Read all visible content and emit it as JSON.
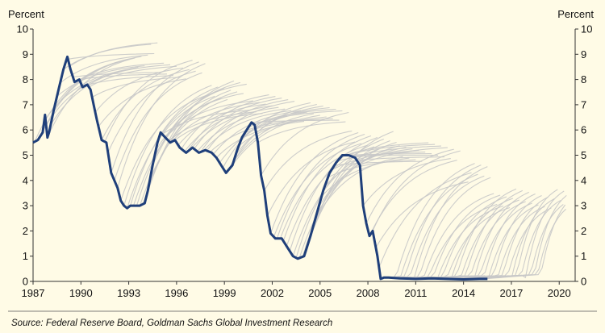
{
  "chart_data": {
    "type": "line",
    "left_axis_title": "Percent",
    "right_axis_title": "Percent",
    "ylim": [
      0,
      10
    ],
    "y_ticks": [
      "0",
      "1",
      "2",
      "3",
      "4",
      "5",
      "6",
      "7",
      "8",
      "9",
      "10"
    ],
    "xlim": [
      1987,
      2021
    ],
    "x_ticks": [
      "1987",
      "1990",
      "1993",
      "1996",
      "1999",
      "2002",
      "2005",
      "2008",
      "2011",
      "2014",
      "2017",
      "2020"
    ],
    "grid": false,
    "source": "Source: Federal Reserve Board, Goldman Sachs Global Investment Research",
    "series": [
      {
        "color": "#1f3f7a",
        "x": [
          1987.0,
          1987.3,
          1987.6,
          1987.75,
          1987.9,
          1988.0,
          1988.3,
          1988.6,
          1988.9,
          1989.15,
          1989.35,
          1989.6,
          1989.9,
          1990.1,
          1990.4,
          1990.6,
          1990.8,
          1991.0,
          1991.3,
          1991.6,
          1991.9,
          1992.1,
          1992.3,
          1992.5,
          1992.7,
          1992.9,
          1993.1,
          1993.4,
          1993.7,
          1994.0,
          1994.2,
          1994.5,
          1994.8,
          1995.0,
          1995.3,
          1995.6,
          1995.9,
          1996.2,
          1996.6,
          1997.0,
          1997.4,
          1997.8,
          1998.2,
          1998.5,
          1998.8,
          1999.1,
          1999.5,
          1999.8,
          2000.1,
          2000.4,
          2000.7,
          2000.9,
          2001.1,
          2001.3,
          2001.5,
          2001.7,
          2001.9,
          2002.2,
          2002.6,
          2003.0,
          2003.3,
          2003.6,
          2004.0,
          2004.4,
          2004.8,
          2005.2,
          2005.6,
          2006.0,
          2006.4,
          2006.8,
          2007.2,
          2007.5,
          2007.7,
          2007.9,
          2008.1,
          2008.3,
          2008.6,
          2008.8,
          2009.0,
          2009.3,
          2010.0,
          2011.0,
          2012.0,
          2013.0,
          2014.0,
          2015.0,
          2015.5
        ],
        "values": [
          5.5,
          5.6,
          5.9,
          6.6,
          5.7,
          5.9,
          6.8,
          7.6,
          8.4,
          8.9,
          8.4,
          7.9,
          8.0,
          7.7,
          7.8,
          7.6,
          7.0,
          6.4,
          5.6,
          5.5,
          4.3,
          4.0,
          3.7,
          3.2,
          3.0,
          2.9,
          3.0,
          3.0,
          3.0,
          3.1,
          3.6,
          4.6,
          5.5,
          5.9,
          5.7,
          5.5,
          5.6,
          5.3,
          5.1,
          5.3,
          5.1,
          5.2,
          5.1,
          4.9,
          4.6,
          4.3,
          4.6,
          5.2,
          5.7,
          6.0,
          6.3,
          6.2,
          5.5,
          4.2,
          3.6,
          2.6,
          1.9,
          1.7,
          1.7,
          1.3,
          1.0,
          0.9,
          1.0,
          1.8,
          2.7,
          3.6,
          4.3,
          4.7,
          5.0,
          5.0,
          4.9,
          4.6,
          3.0,
          2.3,
          1.8,
          2.0,
          1.0,
          0.1,
          0.15,
          0.15,
          0.12,
          0.1,
          0.12,
          0.1,
          0.08,
          0.1,
          0.1
        ]
      }
    ],
    "forecast_curves_color": "#c8c8c8"
  }
}
